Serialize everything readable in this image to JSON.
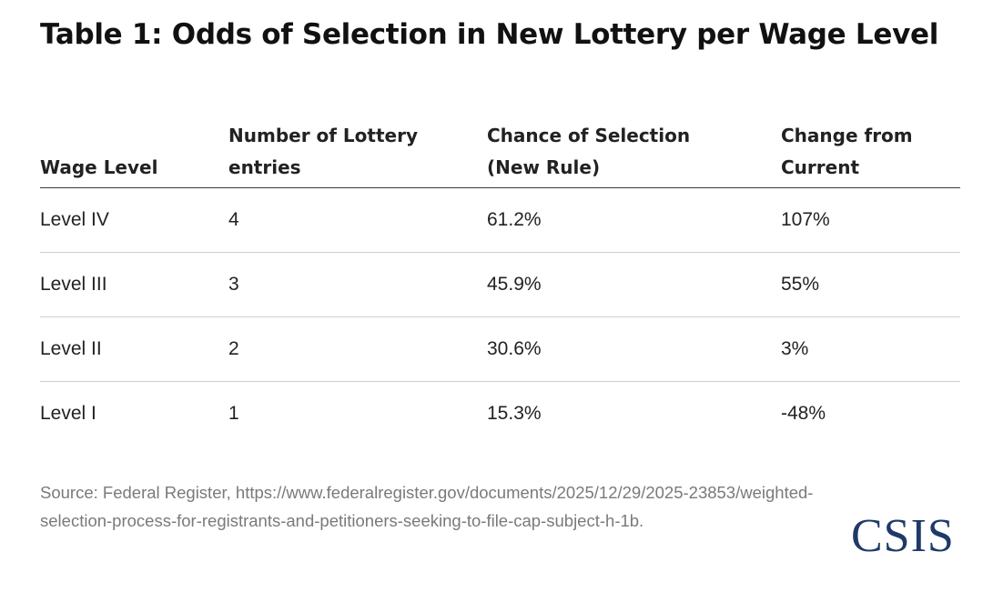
{
  "title": "Table 1: Odds of Selection in New Lottery per Wage Level",
  "table": {
    "headers": [
      [
        "Wage Level"
      ],
      [
        "Number of Lottery",
        "entries"
      ],
      [
        "Chance of Selection",
        "(New Rule)"
      ],
      [
        "Change from",
        "Current"
      ]
    ],
    "rows": [
      [
        "Level IV",
        "4",
        "61.2%",
        "107%"
      ],
      [
        "Level III",
        "3",
        "45.9%",
        "55%"
      ],
      [
        "Level II",
        "2",
        "30.6%",
        "3%"
      ],
      [
        "Level I",
        "1",
        "15.3%",
        "-48%"
      ]
    ]
  },
  "source": "Source: Federal Register, https://www.federalregister.gov/documents/2025/12/29/2025-23853/weighted-selection-process-for-registrants-and-petitioners-seeking-to-file-cap-subject-h-1b.",
  "logo_text": "CSIS",
  "colors": {
    "logo": "#1f3a68",
    "source_text": "#7a7a7a"
  }
}
